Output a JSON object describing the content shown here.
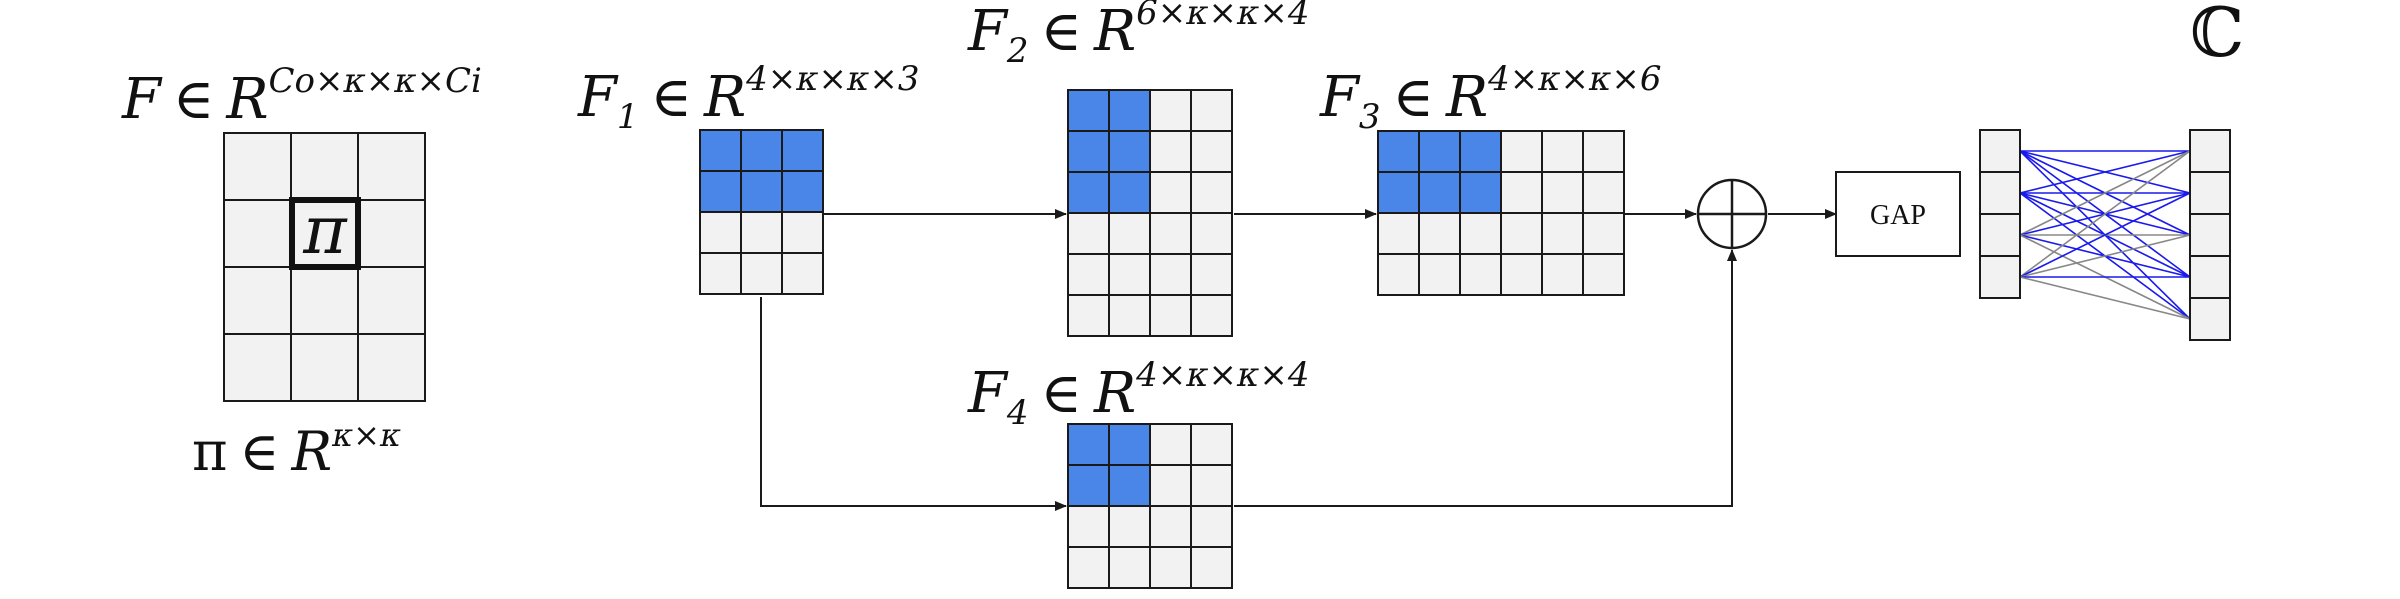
{
  "labels": {
    "kernel": {
      "base": "F",
      "rel": "∈",
      "space": "R",
      "dims": "Co×κ×κ×Ci"
    },
    "pi_def": {
      "base": "π",
      "rel": "∈",
      "space": "R",
      "dims": "κ×κ"
    },
    "pi_cell": "π",
    "f1": {
      "base": "F",
      "sub": "1",
      "rel": "∈",
      "space": "R",
      "dims": "4×κ×κ×3"
    },
    "f2": {
      "base": "F",
      "sub": "2",
      "rel": "∈",
      "space": "R",
      "dims": "6×κ×κ×4"
    },
    "f3": {
      "base": "F",
      "sub": "3",
      "rel": "∈",
      "space": "R",
      "dims": "4×κ×κ×6"
    },
    "f4": {
      "base": "F",
      "sub": "4",
      "rel": "∈",
      "space": "R",
      "dims": "4×κ×κ×4"
    },
    "complex_symbol": "ℂ",
    "gap": "GAP",
    "sum_operator": "⊕"
  },
  "grids": {
    "kernel": {
      "rows": 4,
      "cols": 3,
      "blue_rows": 0,
      "blue_cols": 0
    },
    "f1": {
      "rows": 4,
      "cols": 3,
      "blue_rows": 2,
      "blue_cols": 3
    },
    "f2": {
      "rows": 6,
      "cols": 4,
      "blue_rows": 3,
      "blue_cols": 2
    },
    "f3": {
      "rows": 4,
      "cols": 6,
      "blue_rows": 2,
      "blue_cols": 3
    },
    "f4": {
      "rows": 4,
      "cols": 4,
      "blue_rows": 2,
      "blue_cols": 2
    }
  },
  "fc_layer": {
    "input_nodes": 4,
    "output_nodes": 5,
    "colors": {
      "active": "#1a1aee",
      "inactive": "#888888"
    }
  },
  "colors": {
    "highlight": "#4a86e8",
    "cell": "#f2f2f2",
    "line": "#1a1a1a"
  }
}
